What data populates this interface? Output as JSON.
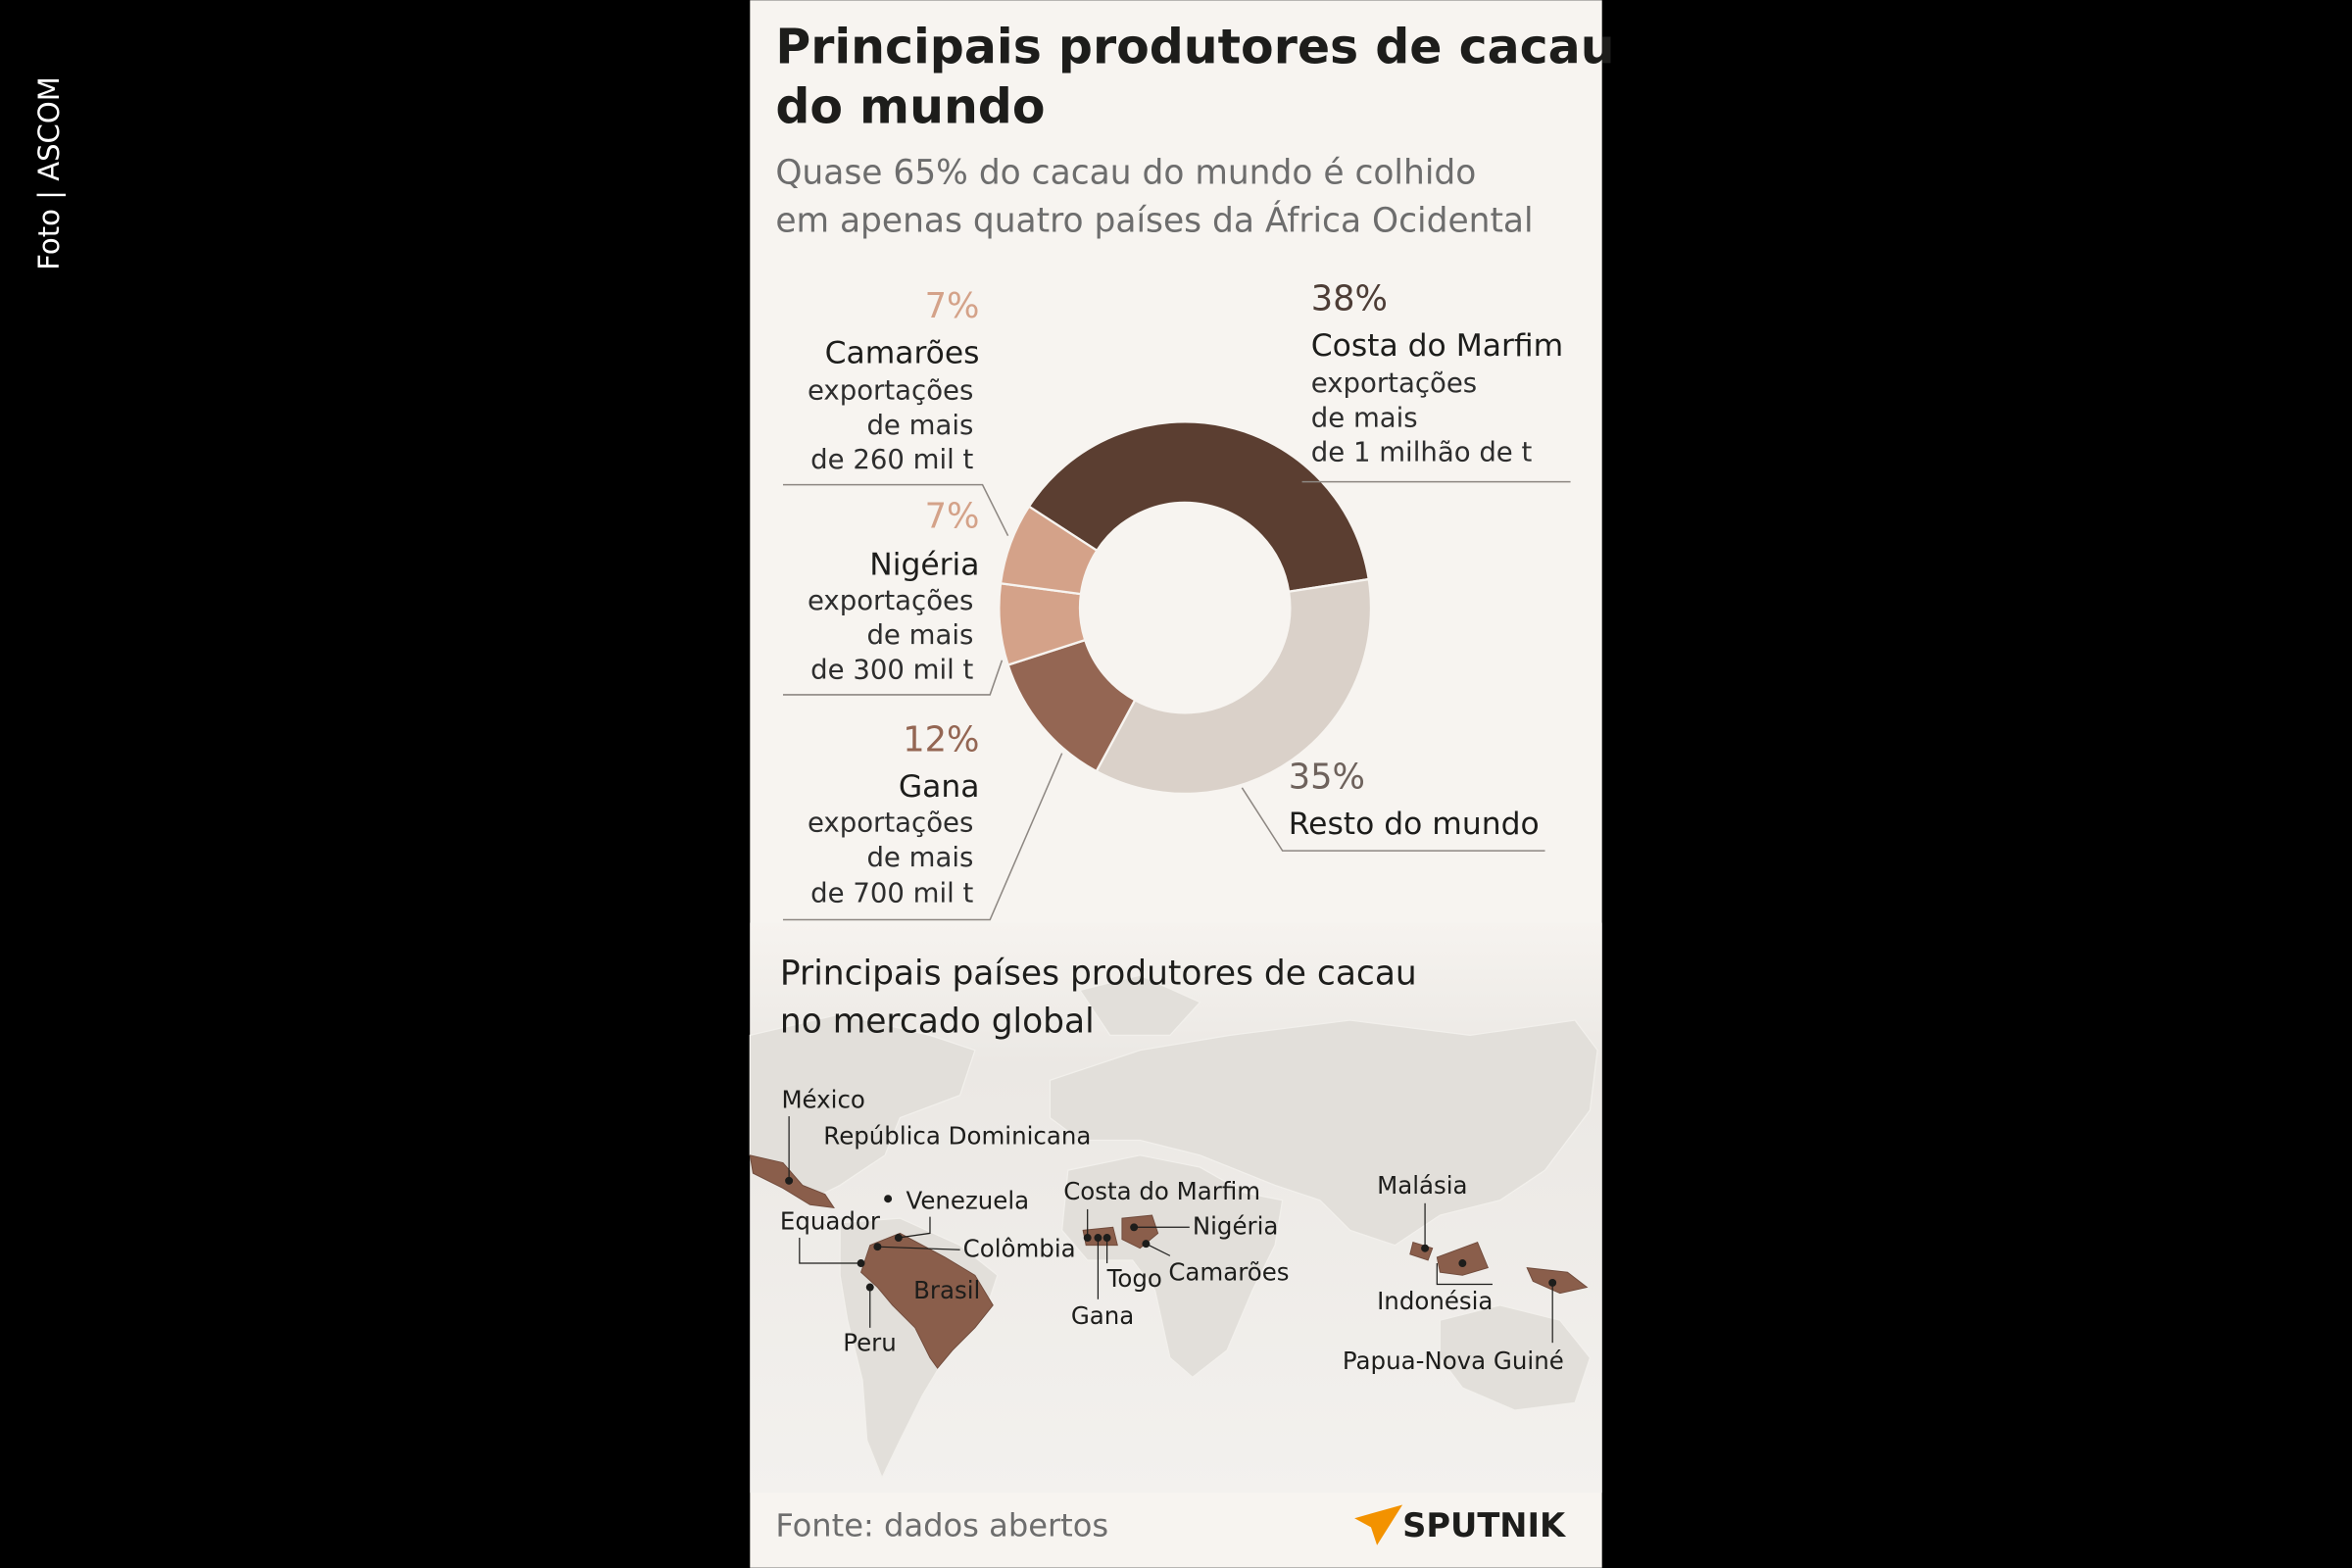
{
  "credit": "Foto | ASCOM",
  "chart_data": {
    "type": "pie",
    "donut": true,
    "title": [
      "Principais produtores de cacau",
      "do mundo"
    ],
    "subtitle": [
      "Quase 65% do cacau do mundo é colhido",
      "em apenas quatro países da África Ocidental"
    ],
    "categories": [
      "Costa do Marfim",
      "Resto do mundo",
      "Gana",
      "Nigéria",
      "Camarões"
    ],
    "values": [
      38,
      35,
      12,
      7,
      7
    ],
    "value_labels": [
      "38%",
      "35%",
      "12%",
      "7%",
      "7%"
    ],
    "descriptions": [
      [
        "exportações",
        "de mais",
        "de 1 milhão de t"
      ],
      null,
      [
        "exportações",
        "de mais",
        "de 700 mil t"
      ],
      [
        "exportações",
        "de mais",
        "de 300 mil t"
      ],
      [
        "exportações",
        "de mais",
        "de 260 mil t"
      ]
    ],
    "colors": [
      "#5b3e31",
      "#dad1c9",
      "#946653",
      "#d4a289",
      "#d4a289"
    ],
    "label_colors": [
      "#4d3d36",
      "#6e625c",
      "#946653",
      "#d4a289",
      "#d4a289"
    ]
  },
  "map": {
    "title": [
      "Principais países produtores de cacau",
      "no mercado global"
    ],
    "labels": [
      "México",
      "República Dominicana",
      "Venezuela",
      "Equador",
      "Colômbia",
      "Brasil",
      "Peru",
      "Costa do Marfim",
      "Nigéria",
      "Togo",
      "Camarões",
      "Gana",
      "Malásia",
      "Indonésia",
      "Papua-Nova Guiné"
    ]
  },
  "source": "Fonte: dados abertos",
  "logo": "SPUTNIK"
}
